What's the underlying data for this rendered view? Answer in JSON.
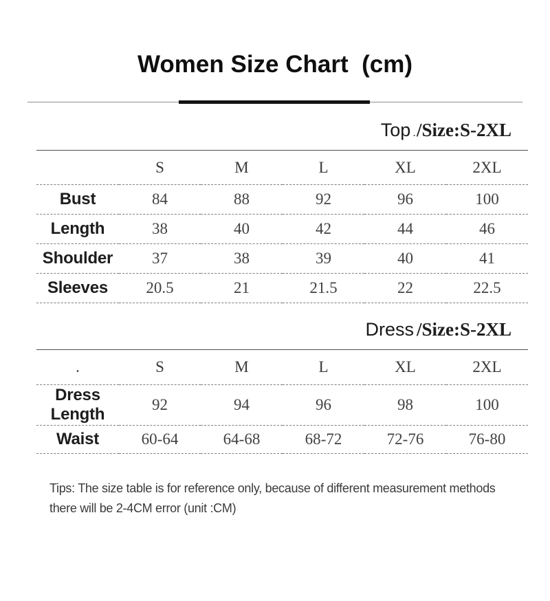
{
  "title": "Women Size Chart  (cm)",
  "tables": [
    {
      "heading": {
        "label": "Top",
        "dot": ".",
        "size": "/Size:S-2XL"
      },
      "corner_dot": "",
      "columns": [
        "S",
        "M",
        "L",
        "XL",
        "2XL"
      ],
      "rows": [
        {
          "label": "Bust",
          "values": [
            "84",
            "88",
            "92",
            "96",
            "100"
          ]
        },
        {
          "label": "Length",
          "values": [
            "38",
            "40",
            "42",
            "44",
            "46"
          ]
        },
        {
          "label": "Shoulder",
          "values": [
            "37",
            "38",
            "39",
            "40",
            "41"
          ]
        },
        {
          "label": "Sleeves",
          "values": [
            "20.5",
            "21",
            "21.5",
            "22",
            "22.5"
          ]
        }
      ]
    },
    {
      "heading": {
        "label": "Dress",
        "dot": "",
        "size": "/Size:S-2XL"
      },
      "corner_dot": ".",
      "columns": [
        "S",
        "M",
        "L",
        "XL",
        "2XL"
      ],
      "rows": [
        {
          "label": "Dress Length",
          "values": [
            "92",
            "94",
            "96",
            "98",
            "100"
          ]
        },
        {
          "label": "Waist",
          "values": [
            "60-64",
            "64-68",
            "68-72",
            "72-76",
            "76-80"
          ]
        }
      ]
    }
  ],
  "tips": {
    "line1": "Tips: The size table is for reference only, because of different measurement methods",
    "line2": "there will be 2-4CM error (unit :CM)"
  },
  "colors": {
    "title_text": "#0f0f0f",
    "divider_thick": "#141414",
    "divider_thin": "#8f8f8f",
    "dashed_line": "#7d7d7d",
    "solid_line": "#4f4f4f",
    "label_text": "#1d1d1d",
    "value_text": "#414141"
  }
}
